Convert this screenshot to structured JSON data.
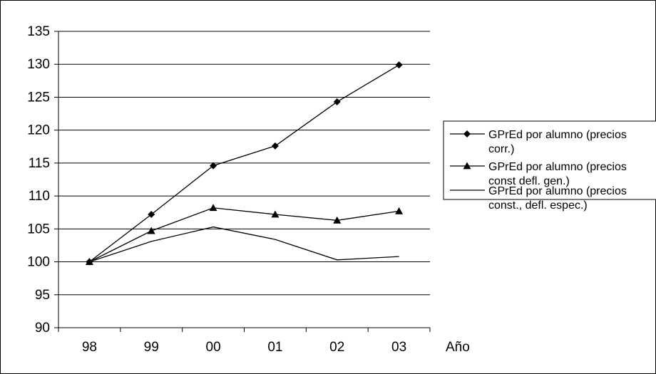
{
  "chart_data": {
    "type": "line",
    "title": "",
    "xlabel": "Año",
    "ylabel": "",
    "categories": [
      "98",
      "99",
      "00",
      "01",
      "02",
      "03"
    ],
    "ylim": [
      90,
      135
    ],
    "yticks": [
      "90",
      "95",
      "100",
      "105",
      "110",
      "115",
      "120",
      "125",
      "130",
      "135"
    ],
    "grid": true,
    "legend_position": "right",
    "series": [
      {
        "name_lines": [
          "GPrEd por alumno (precios",
          "corr.)"
        ],
        "marker": "diamond",
        "values": [
          100,
          107.2,
          114.6,
          117.6,
          124.3,
          129.9
        ]
      },
      {
        "name_lines": [
          "GPrEd por alumno (precios",
          "const defl. gen.)"
        ],
        "marker": "triangle",
        "values": [
          100,
          104.7,
          108.2,
          107.2,
          106.3,
          107.7
        ]
      },
      {
        "name_lines": [
          "GPrEd por alumno (precios",
          "const., defl. espec.)"
        ],
        "marker": "none",
        "values": [
          100,
          103.1,
          105.3,
          103.4,
          100.3,
          100.8
        ]
      }
    ]
  }
}
